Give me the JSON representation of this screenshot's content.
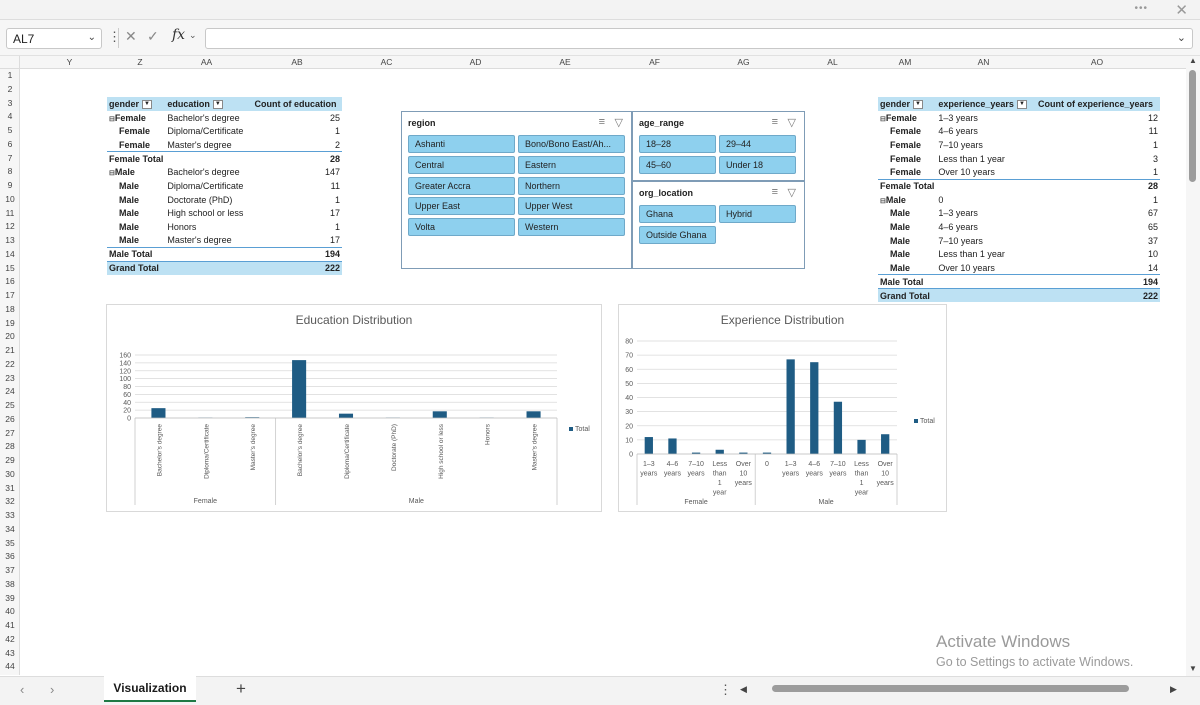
{
  "titlebar": {
    "dots": "•••",
    "close": "✕"
  },
  "formula_bar": {
    "name_box": "AL7",
    "fx": "fx",
    "value": ""
  },
  "columns": [
    "Y",
    "Z",
    "AA",
    "AB",
    "AC",
    "AD",
    "AE",
    "AF",
    "AG",
    "AL",
    "AM",
    "AN",
    "AO"
  ],
  "rows": [
    "1",
    "2",
    "3",
    "4",
    "5",
    "6",
    "7",
    "8",
    "9",
    "10",
    "11",
    "12",
    "13",
    "14",
    "15",
    "16",
    "17",
    "18",
    "19",
    "20",
    "21",
    "22",
    "23",
    "24",
    "25",
    "26",
    "27",
    "28",
    "29",
    "30",
    "31",
    "32",
    "33",
    "34",
    "35",
    "36",
    "37",
    "38",
    "39",
    "40",
    "41",
    "42",
    "43",
    "44"
  ],
  "pivot_education": {
    "headers": [
      "gender",
      "education",
      "Count of education"
    ],
    "rows": [
      [
        "Female",
        "Bachelor's degree",
        "25"
      ],
      [
        "Female",
        "Diploma/Certificate",
        "1"
      ],
      [
        "Female",
        "Master's degree",
        "2"
      ],
      [
        "Female Total",
        "",
        "28"
      ],
      [
        "Male",
        "Bachelor's degree",
        "147"
      ],
      [
        "Male",
        "Diploma/Certificate",
        "11"
      ],
      [
        "Male",
        "Doctorate (PhD)",
        "1"
      ],
      [
        "Male",
        "High school or less",
        "17"
      ],
      [
        "Male",
        "Honors",
        "1"
      ],
      [
        "Male",
        "Master's degree",
        "17"
      ],
      [
        "Male Total",
        "",
        "194"
      ],
      [
        "Grand Total",
        "",
        "222"
      ]
    ]
  },
  "pivot_experience": {
    "headers": [
      "gender",
      "experience_years",
      "Count of experience_years"
    ],
    "rows": [
      [
        "Female",
        "1–3 years",
        "12"
      ],
      [
        "Female",
        "4–6 years",
        "11"
      ],
      [
        "Female",
        "7–10 years",
        "1"
      ],
      [
        "Female",
        "Less than 1 year",
        "3"
      ],
      [
        "Female",
        "Over 10 years",
        "1"
      ],
      [
        "Female Total",
        "",
        "28"
      ],
      [
        "Male",
        "0",
        "1"
      ],
      [
        "Male",
        "1–3 years",
        "67"
      ],
      [
        "Male",
        "4–6 years",
        "65"
      ],
      [
        "Male",
        "7–10 years",
        "37"
      ],
      [
        "Male",
        "Less than 1 year",
        "10"
      ],
      [
        "Male",
        "Over 10 years",
        "14"
      ],
      [
        "Male Total",
        "",
        "194"
      ],
      [
        "Grand Total",
        "",
        "222"
      ]
    ]
  },
  "slicers": {
    "region": {
      "title": "region",
      "items": [
        "Ashanti",
        "Bono/Bono East/Ah...",
        "Central",
        "Eastern",
        "Greater Accra",
        "Northern",
        "Upper East",
        "Upper West",
        "Volta",
        "Western"
      ]
    },
    "age_range": {
      "title": "age_range",
      "items": [
        "18–28",
        "29–44",
        "45–60",
        "Under 18"
      ]
    },
    "org_location": {
      "title": "org_location",
      "items": [
        "Ghana",
        "Hybrid",
        "Outside Ghana"
      ]
    }
  },
  "chart_data": [
    {
      "type": "bar",
      "title": "Education Distribution",
      "groups": [
        "Female",
        "Male"
      ],
      "categories": [
        "Bachelor's degree",
        "Diploma/Certificate",
        "Master's degree",
        "Bachelor's degree",
        "Diploma/Certificate",
        "Doctorate (PhD)",
        "High school or less",
        "Honors",
        "Master's degree"
      ],
      "category_group": [
        "Female",
        "Female",
        "Female",
        "Male",
        "Male",
        "Male",
        "Male",
        "Male",
        "Male"
      ],
      "series": [
        {
          "name": "Total",
          "values": [
            25,
            1,
            2,
            147,
            11,
            1,
            17,
            1,
            17
          ]
        }
      ],
      "yticks": [
        "0",
        "20",
        "40",
        "60",
        "80",
        "100",
        "120",
        "140",
        "160"
      ],
      "ylim": [
        0,
        160
      ],
      "color": "#1f5c84",
      "legend": "right"
    },
    {
      "type": "bar",
      "title": "Experience Distribution",
      "groups": [
        "Female",
        "Male"
      ],
      "categories": [
        "1–3 years",
        "4–6 years",
        "7–10 years",
        "Less than 1 year",
        "Over 10 years",
        "0",
        "1–3 years",
        "4–6 years",
        "7–10 years",
        "Less than 1 year",
        "Over 10 years"
      ],
      "category_group": [
        "Female",
        "Female",
        "Female",
        "Female",
        "Female",
        "Male",
        "Male",
        "Male",
        "Male",
        "Male",
        "Male"
      ],
      "series": [
        {
          "name": "Total",
          "values": [
            12,
            11,
            1,
            3,
            1,
            1,
            67,
            65,
            37,
            10,
            14
          ]
        }
      ],
      "yticks": [
        "0",
        "10",
        "20",
        "30",
        "40",
        "50",
        "60",
        "70",
        "80"
      ],
      "ylim": [
        0,
        80
      ],
      "color": "#1f5c84",
      "legend": "right"
    }
  ],
  "sheet_tabs": {
    "active": "Visualization",
    "add": "+"
  },
  "watermark": {
    "line1": "Activate Windows",
    "line2": "Go to Settings to activate Windows."
  }
}
